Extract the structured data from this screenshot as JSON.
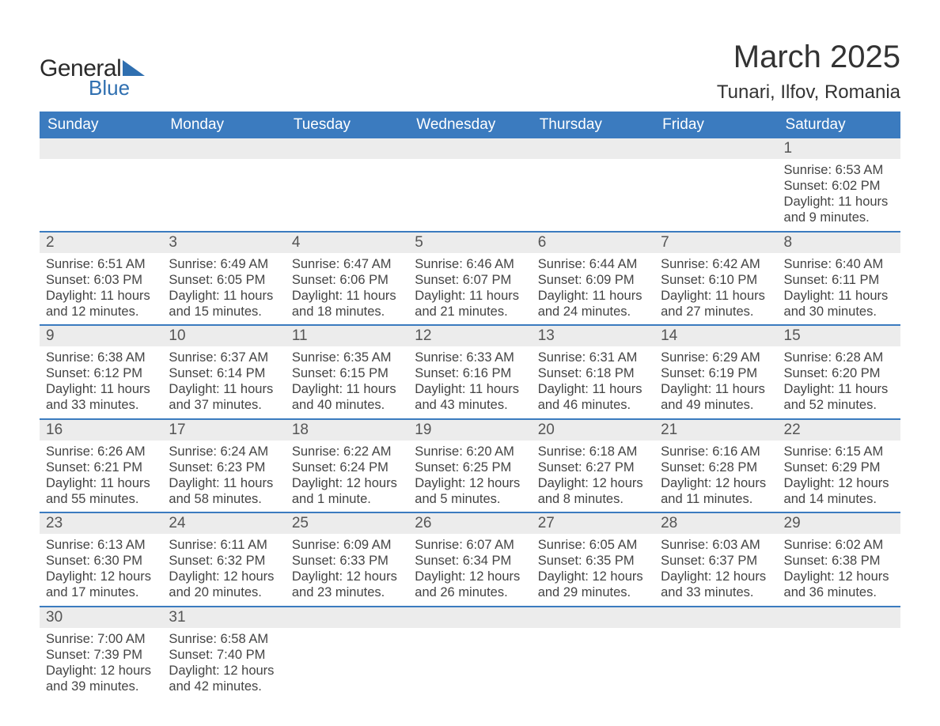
{
  "logo": {
    "text_general": "General",
    "text_blue": "Blue",
    "accent_color": "#2f6fb0"
  },
  "title": "March 2025",
  "location": "Tunari, Ilfov, Romania",
  "header_bg": "#3b7bbf",
  "daynum_bg": "#ececec",
  "weekdays": [
    "Sunday",
    "Monday",
    "Tuesday",
    "Wednesday",
    "Thursday",
    "Friday",
    "Saturday"
  ],
  "weeks": [
    [
      null,
      null,
      null,
      null,
      null,
      null,
      {
        "n": "1",
        "sunrise": "Sunrise: 6:53 AM",
        "sunset": "Sunset: 6:02 PM",
        "d1": "Daylight: 11 hours",
        "d2": "and 9 minutes."
      }
    ],
    [
      {
        "n": "2",
        "sunrise": "Sunrise: 6:51 AM",
        "sunset": "Sunset: 6:03 PM",
        "d1": "Daylight: 11 hours",
        "d2": "and 12 minutes."
      },
      {
        "n": "3",
        "sunrise": "Sunrise: 6:49 AM",
        "sunset": "Sunset: 6:05 PM",
        "d1": "Daylight: 11 hours",
        "d2": "and 15 minutes."
      },
      {
        "n": "4",
        "sunrise": "Sunrise: 6:47 AM",
        "sunset": "Sunset: 6:06 PM",
        "d1": "Daylight: 11 hours",
        "d2": "and 18 minutes."
      },
      {
        "n": "5",
        "sunrise": "Sunrise: 6:46 AM",
        "sunset": "Sunset: 6:07 PM",
        "d1": "Daylight: 11 hours",
        "d2": "and 21 minutes."
      },
      {
        "n": "6",
        "sunrise": "Sunrise: 6:44 AM",
        "sunset": "Sunset: 6:09 PM",
        "d1": "Daylight: 11 hours",
        "d2": "and 24 minutes."
      },
      {
        "n": "7",
        "sunrise": "Sunrise: 6:42 AM",
        "sunset": "Sunset: 6:10 PM",
        "d1": "Daylight: 11 hours",
        "d2": "and 27 minutes."
      },
      {
        "n": "8",
        "sunrise": "Sunrise: 6:40 AM",
        "sunset": "Sunset: 6:11 PM",
        "d1": "Daylight: 11 hours",
        "d2": "and 30 minutes."
      }
    ],
    [
      {
        "n": "9",
        "sunrise": "Sunrise: 6:38 AM",
        "sunset": "Sunset: 6:12 PM",
        "d1": "Daylight: 11 hours",
        "d2": "and 33 minutes."
      },
      {
        "n": "10",
        "sunrise": "Sunrise: 6:37 AM",
        "sunset": "Sunset: 6:14 PM",
        "d1": "Daylight: 11 hours",
        "d2": "and 37 minutes."
      },
      {
        "n": "11",
        "sunrise": "Sunrise: 6:35 AM",
        "sunset": "Sunset: 6:15 PM",
        "d1": "Daylight: 11 hours",
        "d2": "and 40 minutes."
      },
      {
        "n": "12",
        "sunrise": "Sunrise: 6:33 AM",
        "sunset": "Sunset: 6:16 PM",
        "d1": "Daylight: 11 hours",
        "d2": "and 43 minutes."
      },
      {
        "n": "13",
        "sunrise": "Sunrise: 6:31 AM",
        "sunset": "Sunset: 6:18 PM",
        "d1": "Daylight: 11 hours",
        "d2": "and 46 minutes."
      },
      {
        "n": "14",
        "sunrise": "Sunrise: 6:29 AM",
        "sunset": "Sunset: 6:19 PM",
        "d1": "Daylight: 11 hours",
        "d2": "and 49 minutes."
      },
      {
        "n": "15",
        "sunrise": "Sunrise: 6:28 AM",
        "sunset": "Sunset: 6:20 PM",
        "d1": "Daylight: 11 hours",
        "d2": "and 52 minutes."
      }
    ],
    [
      {
        "n": "16",
        "sunrise": "Sunrise: 6:26 AM",
        "sunset": "Sunset: 6:21 PM",
        "d1": "Daylight: 11 hours",
        "d2": "and 55 minutes."
      },
      {
        "n": "17",
        "sunrise": "Sunrise: 6:24 AM",
        "sunset": "Sunset: 6:23 PM",
        "d1": "Daylight: 11 hours",
        "d2": "and 58 minutes."
      },
      {
        "n": "18",
        "sunrise": "Sunrise: 6:22 AM",
        "sunset": "Sunset: 6:24 PM",
        "d1": "Daylight: 12 hours",
        "d2": "and 1 minute."
      },
      {
        "n": "19",
        "sunrise": "Sunrise: 6:20 AM",
        "sunset": "Sunset: 6:25 PM",
        "d1": "Daylight: 12 hours",
        "d2": "and 5 minutes."
      },
      {
        "n": "20",
        "sunrise": "Sunrise: 6:18 AM",
        "sunset": "Sunset: 6:27 PM",
        "d1": "Daylight: 12 hours",
        "d2": "and 8 minutes."
      },
      {
        "n": "21",
        "sunrise": "Sunrise: 6:16 AM",
        "sunset": "Sunset: 6:28 PM",
        "d1": "Daylight: 12 hours",
        "d2": "and 11 minutes."
      },
      {
        "n": "22",
        "sunrise": "Sunrise: 6:15 AM",
        "sunset": "Sunset: 6:29 PM",
        "d1": "Daylight: 12 hours",
        "d2": "and 14 minutes."
      }
    ],
    [
      {
        "n": "23",
        "sunrise": "Sunrise: 6:13 AM",
        "sunset": "Sunset: 6:30 PM",
        "d1": "Daylight: 12 hours",
        "d2": "and 17 minutes."
      },
      {
        "n": "24",
        "sunrise": "Sunrise: 6:11 AM",
        "sunset": "Sunset: 6:32 PM",
        "d1": "Daylight: 12 hours",
        "d2": "and 20 minutes."
      },
      {
        "n": "25",
        "sunrise": "Sunrise: 6:09 AM",
        "sunset": "Sunset: 6:33 PM",
        "d1": "Daylight: 12 hours",
        "d2": "and 23 minutes."
      },
      {
        "n": "26",
        "sunrise": "Sunrise: 6:07 AM",
        "sunset": "Sunset: 6:34 PM",
        "d1": "Daylight: 12 hours",
        "d2": "and 26 minutes."
      },
      {
        "n": "27",
        "sunrise": "Sunrise: 6:05 AM",
        "sunset": "Sunset: 6:35 PM",
        "d1": "Daylight: 12 hours",
        "d2": "and 29 minutes."
      },
      {
        "n": "28",
        "sunrise": "Sunrise: 6:03 AM",
        "sunset": "Sunset: 6:37 PM",
        "d1": "Daylight: 12 hours",
        "d2": "and 33 minutes."
      },
      {
        "n": "29",
        "sunrise": "Sunrise: 6:02 AM",
        "sunset": "Sunset: 6:38 PM",
        "d1": "Daylight: 12 hours",
        "d2": "and 36 minutes."
      }
    ],
    [
      {
        "n": "30",
        "sunrise": "Sunrise: 7:00 AM",
        "sunset": "Sunset: 7:39 PM",
        "d1": "Daylight: 12 hours",
        "d2": "and 39 minutes."
      },
      {
        "n": "31",
        "sunrise": "Sunrise: 6:58 AM",
        "sunset": "Sunset: 7:40 PM",
        "d1": "Daylight: 12 hours",
        "d2": "and 42 minutes."
      },
      null,
      null,
      null,
      null,
      null
    ]
  ]
}
